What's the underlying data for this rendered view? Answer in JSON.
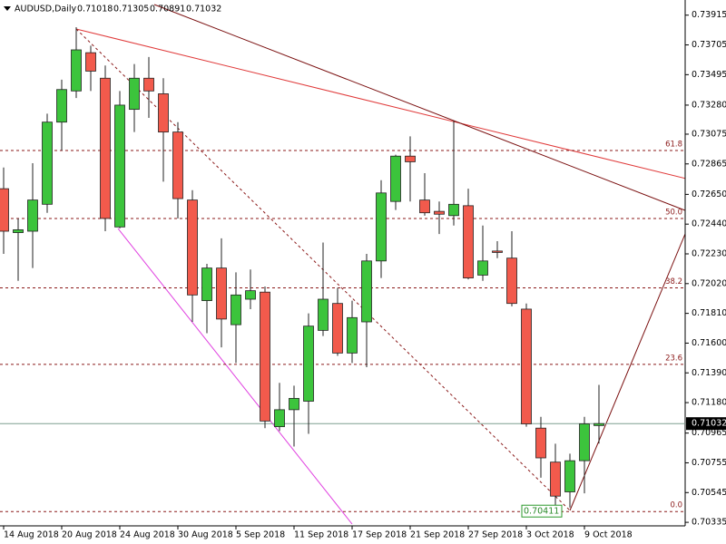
{
  "chart_data": {
    "type": "candlestick",
    "symbol": "AUDUSD,Daily",
    "header_values": [
      0.71018,
      0.71305,
      0.70891,
      0.71032
    ],
    "categories": [
      "14 Aug 2018",
      null,
      null,
      null,
      "20 Aug 2018",
      null,
      null,
      null,
      "24 Aug 2018",
      null,
      null,
      null,
      "30 Aug 2018",
      null,
      null,
      null,
      "5 Sep 2018",
      null,
      null,
      null,
      "11 Sep 2018",
      null,
      null,
      null,
      "17 Sep 2018",
      null,
      null,
      null,
      "21 Sep 2018",
      null,
      null,
      null,
      "27 Sep 2018",
      null,
      null,
      null,
      "3 Oct 2018",
      null,
      null,
      null,
      "9 Oct 2018",
      null
    ],
    "open": [
      0.7269,
      0.7238,
      0.7239,
      0.7258,
      0.7316,
      0.7338,
      0.7365,
      0.7347,
      0.7242,
      0.7325,
      0.7347,
      0.7336,
      0.7309,
      0.7261,
      0.719,
      0.7213,
      0.7173,
      0.7191,
      0.7196,
      0.7101,
      0.7113,
      0.7119,
      0.7169,
      0.7188,
      0.7153,
      0.7175,
      0.7218,
      0.726,
      0.7292,
      0.7261,
      0.7253,
      0.725,
      0.7257,
      0.7208,
      0.7225,
      0.722,
      0.7184,
      0.71,
      0.7076,
      0.7055,
      0.7077,
      0.71018
    ],
    "high": [
      0.7284,
      0.7248,
      0.7287,
      0.7322,
      0.7346,
      0.7383,
      0.737,
      0.7356,
      0.7338,
      0.7357,
      0.7362,
      0.7347,
      0.7316,
      0.7268,
      0.7216,
      0.7234,
      0.721,
      0.7212,
      0.72,
      0.7132,
      0.713,
      0.7181,
      0.7231,
      0.7199,
      0.719,
      0.7223,
      0.7275,
      0.7293,
      0.7306,
      0.728,
      0.726,
      0.7317,
      0.7269,
      0.7243,
      0.7232,
      0.7239,
      0.7188,
      0.7108,
      0.7089,
      0.7082,
      0.7108,
      0.71305
    ],
    "low": [
      0.7223,
      0.7204,
      0.7213,
      0.7252,
      0.7296,
      0.7333,
      0.7338,
      0.7239,
      0.7241,
      0.7309,
      0.7319,
      0.7274,
      0.7248,
      0.7175,
      0.7167,
      0.7157,
      0.7146,
      0.7184,
      0.71,
      0.7098,
      0.7087,
      0.7096,
      0.7165,
      0.7151,
      0.7146,
      0.7143,
      0.7206,
      0.7254,
      0.726,
      0.725,
      0.7237,
      0.7243,
      0.7205,
      0.7204,
      0.722,
      0.7186,
      0.7101,
      0.7065,
      0.70411,
      0.7044,
      0.7054,
      0.70891
    ],
    "close": [
      0.7239,
      0.724,
      0.7261,
      0.7316,
      0.7339,
      0.7367,
      0.7352,
      0.7248,
      0.7328,
      0.7347,
      0.7338,
      0.7309,
      0.7262,
      0.7194,
      0.7213,
      0.7177,
      0.7194,
      0.7197,
      0.7105,
      0.7113,
      0.7121,
      0.7172,
      0.7191,
      0.7153,
      0.7178,
      0.7218,
      0.7266,
      0.7292,
      0.7288,
      0.7252,
      0.7251,
      0.7258,
      0.7206,
      0.7218,
      0.7224,
      0.7188,
      0.7103,
      0.7079,
      0.7052,
      0.7077,
      0.7103,
      0.71032
    ],
    "up_color": "#3cc43c",
    "down_color": "#f25a4c",
    "ylim": [
      0.7031,
      0.7399
    ],
    "yticks": [
      0.73915,
      0.73705,
      0.73495,
      {
        "value": 0.7328,
        "label": "0.73280"
      },
      0.73075,
      0.72865,
      {
        "value": 0.7265,
        "label": "0.72650"
      },
      {
        "value": 0.7244,
        "label": "0.72440"
      },
      {
        "value": 0.7223,
        "label": "0.72230"
      },
      {
        "value": 0.7202,
        "label": "0.72020"
      },
      {
        "value": 0.7181,
        "label": "0.71810"
      },
      {
        "value": 0.716,
        "label": "0.71600"
      },
      {
        "value": 0.7139,
        "label": "0.71390"
      },
      {
        "value": 0.7118,
        "label": "0.71180"
      },
      0.70965,
      0.70755,
      0.70545,
      0.70335
    ],
    "fib_levels": [
      {
        "value": 0.7296,
        "label": "61.8"
      },
      {
        "value": 0.7248,
        "label": "50.0"
      },
      {
        "value": 0.7199,
        "label": "38.2"
      },
      {
        "value": 0.7145,
        "label": "23.6"
      },
      {
        "value": 0.70411,
        "label": "0.0"
      }
    ],
    "fib_color": "#8b1a1a",
    "low_label": 0.70411,
    "last_price": 0.71032
  }
}
